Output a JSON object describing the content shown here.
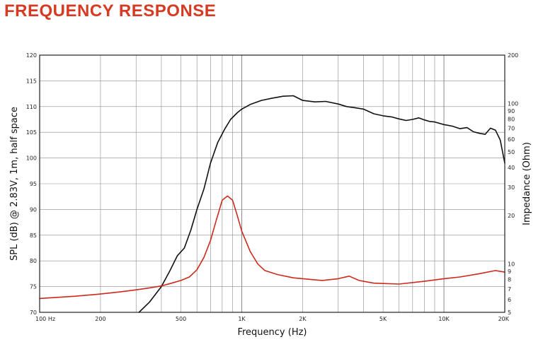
{
  "title": "FREQUENCY RESPONSE",
  "colors": {
    "title": "#d63a22",
    "spl": "#111111",
    "impedance": "#cc2a1a",
    "grid": "#8a8a8a"
  },
  "chart_data": {
    "type": "line",
    "xlabel": "Frequency (Hz)",
    "ylabel": "SPL (dB) @ 2.83V, 1m, half space",
    "y2label": "Impedance (Ohm)",
    "xscale": "log",
    "xlim": [
      100,
      20000
    ],
    "ylim": [
      70,
      120
    ],
    "y2scale": "log",
    "y2lim": [
      5,
      200
    ],
    "grid": true,
    "x_tick_labels": [
      {
        "value": 100,
        "label": "100  Hz"
      },
      {
        "value": 200,
        "label": "200"
      },
      {
        "value": 500,
        "label": "500"
      },
      {
        "value": 1000,
        "label": "1K"
      },
      {
        "value": 2000,
        "label": "2K"
      },
      {
        "value": 5000,
        "label": "5K"
      },
      {
        "value": 10000,
        "label": "10K"
      },
      {
        "value": 20000,
        "label": "20K"
      }
    ],
    "y_tick_labels": [
      {
        "value": 70,
        "label": "70"
      },
      {
        "value": 75,
        "label": "75"
      },
      {
        "value": 80,
        "label": "80"
      },
      {
        "value": 85,
        "label": "85"
      },
      {
        "value": 90,
        "label": "90"
      },
      {
        "value": 95,
        "label": "95"
      },
      {
        "value": 100,
        "label": "100"
      },
      {
        "value": 105,
        "label": "105"
      },
      {
        "value": 110,
        "label": "110"
      },
      {
        "value": 115,
        "label": "115"
      },
      {
        "value": 120,
        "label": "120"
      }
    ],
    "y2_tick_labels": [
      {
        "value": 5,
        "label": "5"
      },
      {
        "value": 6,
        "label": "6"
      },
      {
        "value": 7,
        "label": "7"
      },
      {
        "value": 8,
        "label": "8"
      },
      {
        "value": 9,
        "label": "9"
      },
      {
        "value": 10,
        "label": "10"
      },
      {
        "value": 20,
        "label": "20"
      },
      {
        "value": 30,
        "label": "30"
      },
      {
        "value": 40,
        "label": "40"
      },
      {
        "value": 50,
        "label": "50"
      },
      {
        "value": 60,
        "label": "60"
      },
      {
        "value": 70,
        "label": "70"
      },
      {
        "value": 80,
        "label": "80"
      },
      {
        "value": 90,
        "label": "90"
      },
      {
        "value": 100,
        "label": "100"
      },
      {
        "value": 200,
        "label": "200"
      }
    ],
    "series": [
      {
        "axis": "left",
        "x": [
          310,
          350,
          400,
          440,
          480,
          520,
          560,
          600,
          650,
          700,
          760,
          820,
          880,
          950,
          1000,
          1100,
          1250,
          1400,
          1600,
          1800,
          2000,
          2300,
          2600,
          3000,
          3300,
          3600,
          4000,
          4500,
          5000,
          5500,
          6000,
          6500,
          7000,
          7500,
          8000,
          8500,
          9000,
          10000,
          11000,
          12000,
          13000,
          14000,
          15000,
          16000,
          17000,
          18000,
          19000,
          20000
        ],
        "y": [
          70,
          72,
          75,
          78,
          81,
          82.5,
          86,
          90,
          94,
          99,
          103,
          105.5,
          107.5,
          108.8,
          109.5,
          110.4,
          111.2,
          111.6,
          112,
          112.1,
          111.2,
          110.9,
          111,
          110.5,
          110,
          109.8,
          109.5,
          108.6,
          108.2,
          108,
          107.6,
          107.3,
          107.5,
          107.8,
          107.4,
          107.1,
          107,
          106.5,
          106.2,
          105.7,
          105.9,
          105.1,
          104.8,
          104.6,
          105.8,
          105.4,
          103.5,
          99
        ]
      },
      {
        "axis": "right",
        "x": [
          100,
          150,
          200,
          250,
          300,
          350,
          400,
          450,
          500,
          550,
          600,
          650,
          700,
          750,
          800,
          850,
          900,
          950,
          1000,
          1100,
          1200,
          1300,
          1500,
          1800,
          2000,
          2500,
          3000,
          3400,
          3800,
          4500,
          6000,
          8000,
          10000,
          12000,
          15000,
          18000,
          20000
        ],
        "y": [
          6.1,
          6.3,
          6.5,
          6.7,
          6.9,
          7.1,
          7.3,
          7.6,
          7.9,
          8.3,
          9.2,
          11,
          14,
          19,
          25,
          26.5,
          25,
          20,
          16,
          12,
          10,
          9.1,
          8.6,
          8.2,
          8.1,
          7.9,
          8.1,
          8.4,
          7.9,
          7.6,
          7.5,
          7.8,
          8.1,
          8.3,
          8.7,
          9.1,
          8.9
        ]
      }
    ]
  }
}
